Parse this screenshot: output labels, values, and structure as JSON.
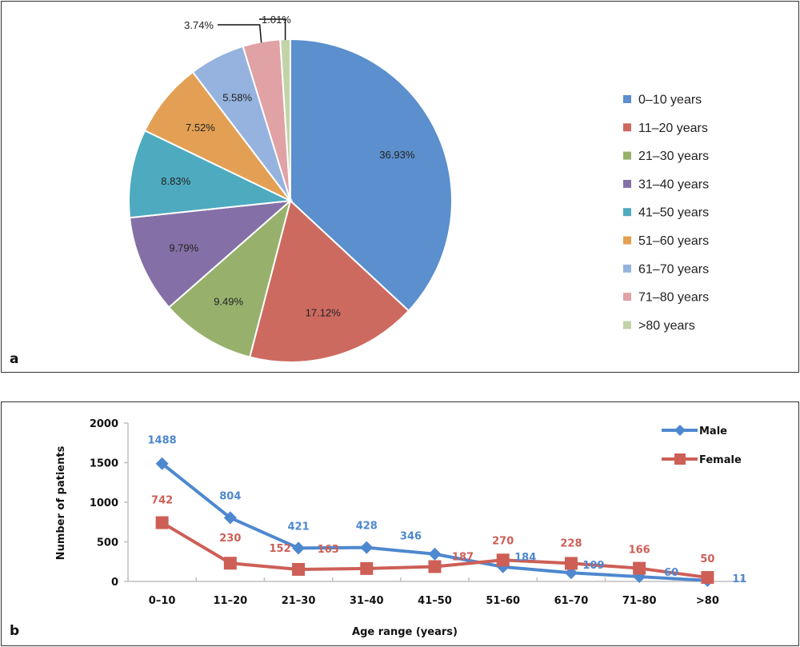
{
  "chart_data": [
    {
      "type": "pie",
      "panel_label": "a",
      "categories": [
        "0–10 years",
        "11–20 years",
        "21–30 years",
        "31–40 years",
        "41–50 years",
        "51–60 years",
        "61–70 years",
        "71–80 years",
        ">80 years"
      ],
      "values": [
        36.93,
        17.12,
        9.49,
        9.79,
        8.83,
        7.52,
        5.58,
        3.74,
        1.01
      ],
      "labels": [
        "36.93%",
        "17.12%",
        "9.49%",
        "9.79%",
        "8.83%",
        "7.52%",
        "5.58%",
        "3.74%",
        "1.01%"
      ],
      "colors": [
        "#5b8fcd",
        "#cd6a60",
        "#97b16d",
        "#8470a6",
        "#4eaabf",
        "#e3a054",
        "#95b3de",
        "#e0a2a5",
        "#c3d3a8"
      ],
      "legend_position": "right",
      "start_angle": "12 o'clock, clockwise"
    },
    {
      "type": "line",
      "panel_label": "b",
      "categories": [
        "0–10",
        "11–20",
        "21–30",
        "31–40",
        "41–50",
        "51–60",
        "61–70",
        "71–80",
        ">80"
      ],
      "series": [
        {
          "name": "Male",
          "values": [
            1488,
            804,
            421,
            428,
            346,
            184,
            109,
            60,
            11
          ],
          "color": "#4e88cf",
          "marker": "diamond"
        },
        {
          "name": "Female",
          "values": [
            742,
            230,
            152,
            163,
            187,
            270,
            228,
            166,
            50
          ],
          "color": "#cd5f57",
          "marker": "square"
        }
      ],
      "xlabel": "Age range (years)",
      "ylabel": "Number of patients",
      "ylim": [
        0,
        2000
      ],
      "yticks": [
        "0",
        "500",
        "1000",
        "1500",
        "2000"
      ],
      "ytick_values": [
        0,
        500,
        1000,
        1500,
        2000
      ],
      "grid": false,
      "legend_position": "top-right"
    }
  ]
}
